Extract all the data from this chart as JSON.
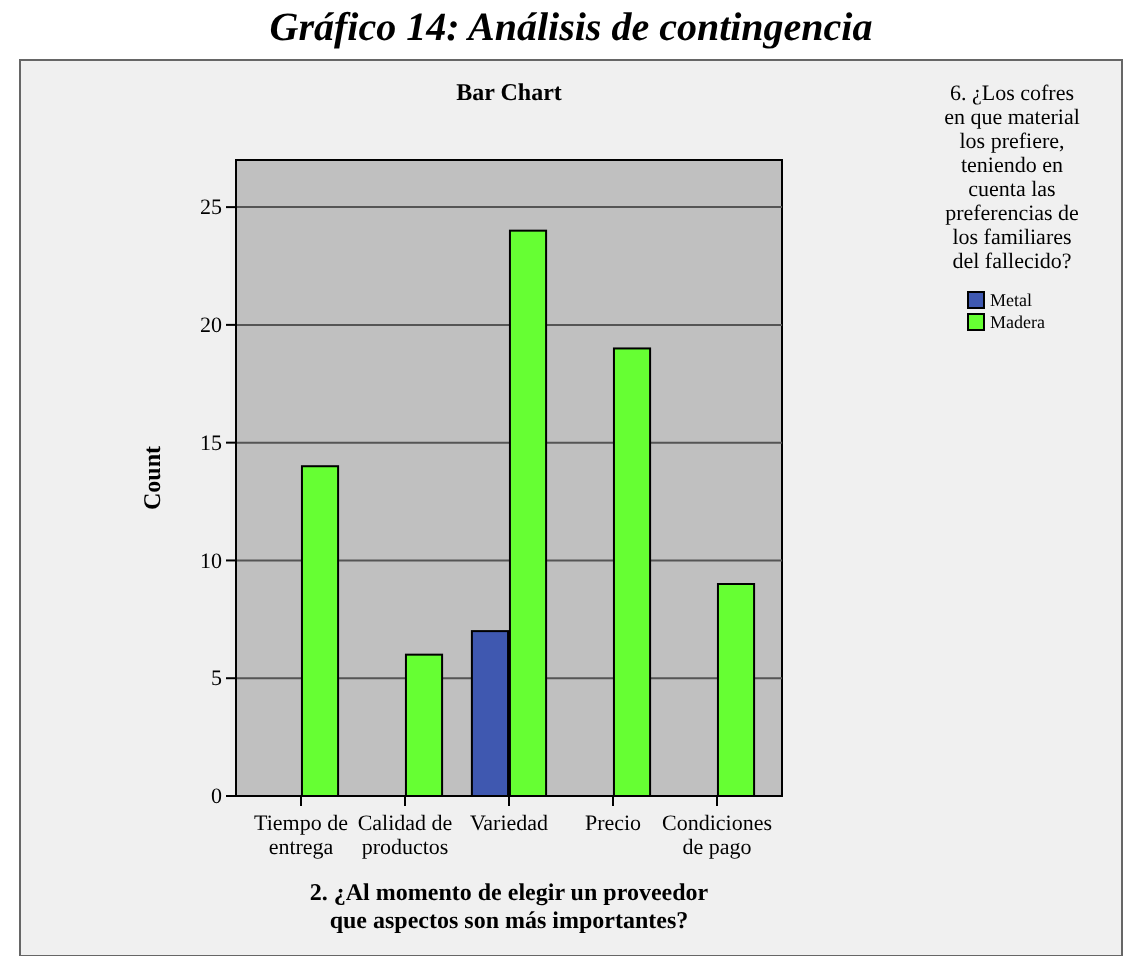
{
  "chart_data": {
    "type": "bar",
    "title": "Gráfico 14: Análisis de contingencia",
    "subtitle": "Bar Chart",
    "xlabel": "2. ¿Al momento de elegir un proveedor que aspectos son más importantes?",
    "ylabel": "Count",
    "legend_title": "6. ¿Los cofres en que material los prefiere, teniendo en cuenta las preferencias de los familiares del fallecido?",
    "categories": [
      "Tiempo de entrega",
      "Calidad de productos",
      "Variedad",
      "Precio",
      "Condiciones de pago"
    ],
    "series": [
      {
        "name": "Metal",
        "color": "#3f58b0",
        "values": [
          null,
          null,
          7,
          null,
          null
        ]
      },
      {
        "name": "Madera",
        "color": "#66ff33",
        "values": [
          14,
          6,
          24,
          19,
          9
        ]
      }
    ],
    "ylim": [
      0,
      27
    ],
    "yticks": [
      0,
      5,
      10,
      15,
      20,
      25
    ],
    "grid": "y",
    "legend": "right"
  }
}
